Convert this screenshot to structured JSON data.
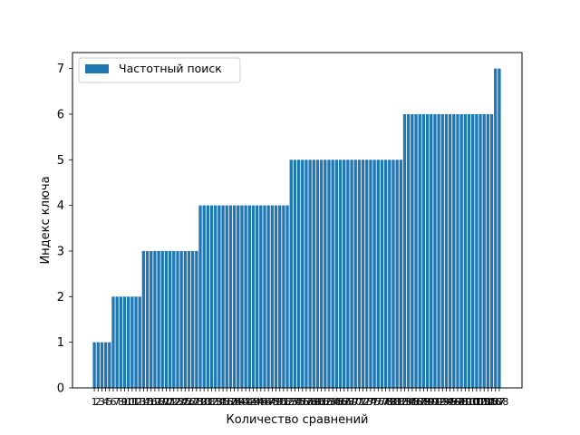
{
  "chart_data": {
    "type": "bar",
    "xlabel": "Количество сравнений",
    "ylabel": "Индекс ключа",
    "ylim": [
      0,
      7.35
    ],
    "yticks": [
      0,
      1,
      2,
      3,
      4,
      5,
      6,
      7
    ],
    "grid": false,
    "legend": "top-left",
    "series": [
      {
        "name": "Частотный поиск",
        "color": "#1f77b4",
        "groups": [
          {
            "value": 1,
            "count": 5
          },
          {
            "value": 2,
            "count": 8
          },
          {
            "value": 3,
            "count": 15
          },
          {
            "value": 4,
            "count": 24
          },
          {
            "value": 5,
            "count": 30
          },
          {
            "value": 6,
            "count": 24
          },
          {
            "value": 7,
            "count": 2
          }
        ]
      }
    ]
  }
}
